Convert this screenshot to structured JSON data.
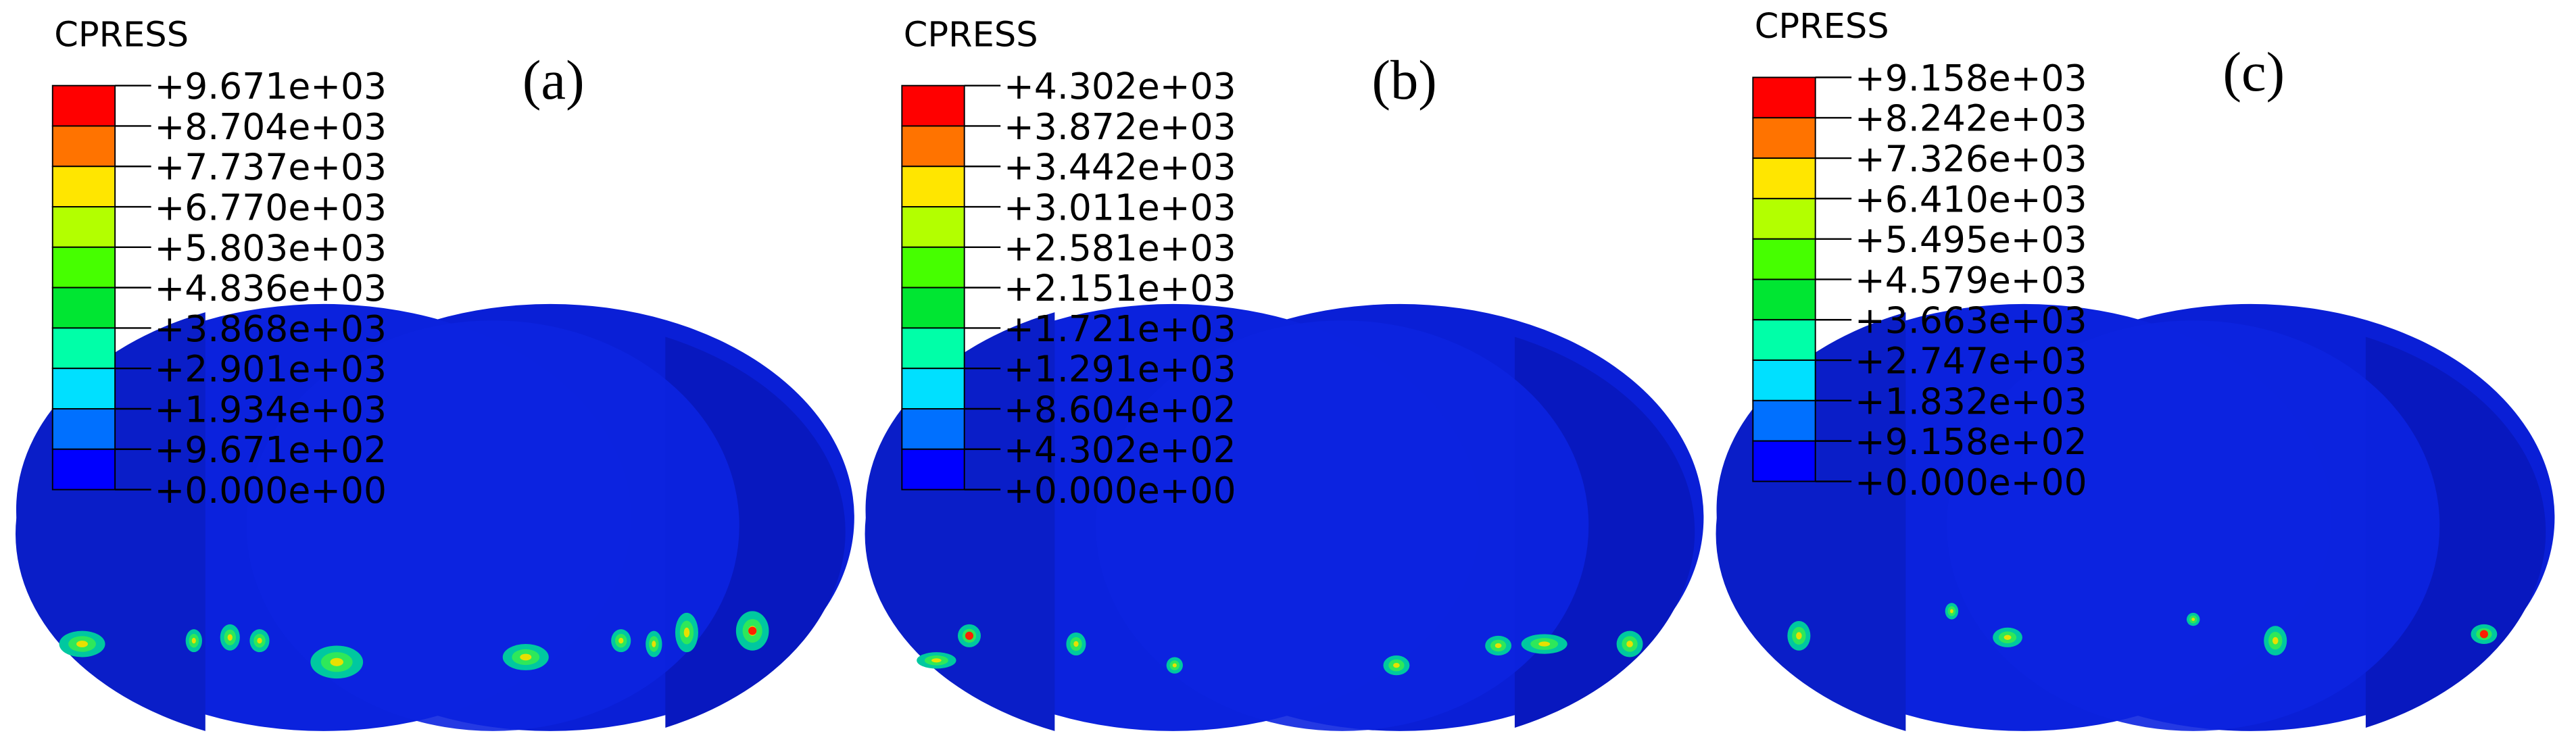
{
  "panels": [
    {
      "label": "(a)",
      "legend": {
        "title": "CPRESS",
        "values": [
          "+9.671e+03",
          "+8.704e+03",
          "+7.737e+03",
          "+6.770e+03",
          "+5.803e+03",
          "+4.836e+03",
          "+3.868e+03",
          "+2.901e+03",
          "+1.934e+03",
          "+9.671e+02",
          "+0.000e+00"
        ]
      }
    },
    {
      "label": "(b)",
      "legend": {
        "title": "CPRESS",
        "values": [
          "+4.302e+03",
          "+3.872e+03",
          "+3.442e+03",
          "+3.011e+03",
          "+2.581e+03",
          "+2.151e+03",
          "+1.721e+03",
          "+1.291e+03",
          "+8.604e+02",
          "+4.302e+02",
          "+0.000e+00"
        ]
      }
    },
    {
      "label": "(c)",
      "legend": {
        "title": "CPRESS",
        "values": [
          "+9.158e+03",
          "+8.242e+03",
          "+7.326e+03",
          "+6.410e+03",
          "+5.495e+03",
          "+4.579e+03",
          "+3.663e+03",
          "+2.747e+03",
          "+1.832e+03",
          "+9.158e+02",
          "+0.000e+00"
        ]
      }
    }
  ]
}
